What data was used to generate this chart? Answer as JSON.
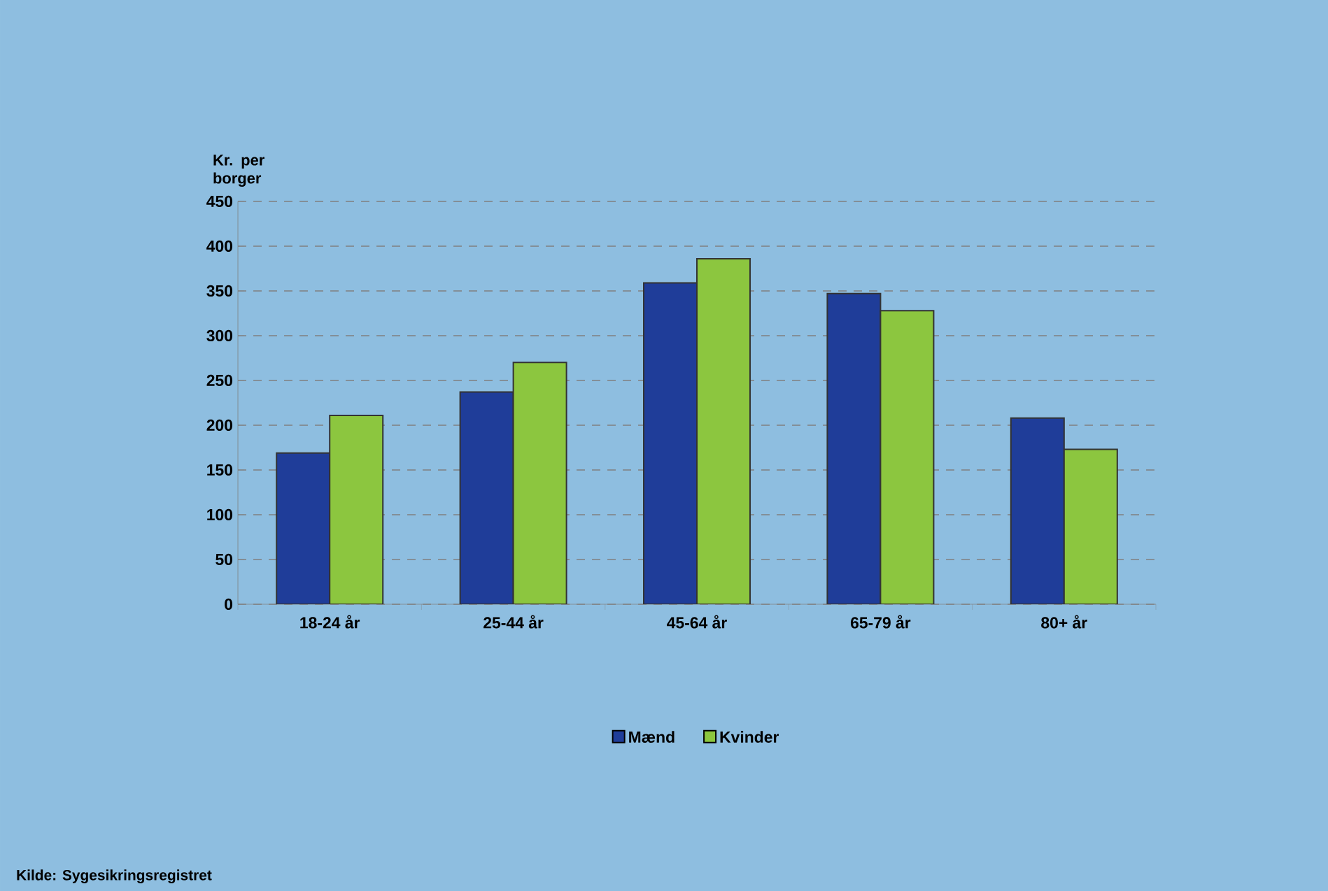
{
  "chart_data": {
    "type": "bar",
    "ylabel": "Kr. per borger",
    "categories": [
      "18-24 år",
      "25-44 år",
      "45-64 år",
      "65-79 år",
      "80+ år"
    ],
    "series": [
      {
        "name": "Mænd",
        "color": "#1f3d99",
        "values": [
          169,
          237,
          359,
          347,
          208
        ]
      },
      {
        "name": "Kvinder",
        "color": "#8cc63f",
        "values": [
          211,
          270,
          386,
          328,
          173
        ]
      }
    ],
    "ylim": [
      0,
      450
    ],
    "yticks": [
      0,
      50,
      100,
      150,
      200,
      250,
      300,
      350,
      400,
      450
    ],
    "grid": "y",
    "legend": "bottom",
    "annotations": [
      "Kilde: Sygesikringsregistret"
    ]
  }
}
